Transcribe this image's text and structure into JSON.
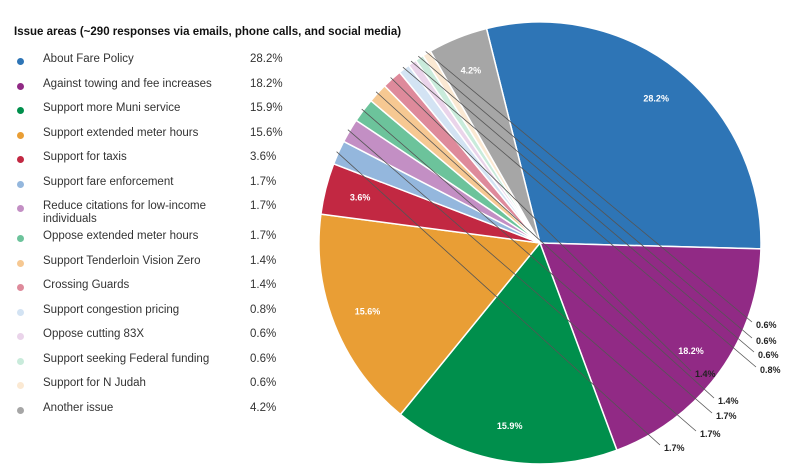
{
  "chart_data": {
    "type": "pie",
    "title": "Issue areas (~290 responses via emails, phone calls, and social media)",
    "slices": [
      {
        "label": "About Fare Policy",
        "value": 28.2,
        "display": "28.2%",
        "color": "#2e75b6"
      },
      {
        "label": "Against towing and fee increases",
        "value": 18.2,
        "display": "18.2%",
        "color": "#912a85"
      },
      {
        "label": "Support more Muni service",
        "value": 15.9,
        "display": "15.9%",
        "color": "#008f4c"
      },
      {
        "label": "Support extended meter hours",
        "value": 15.6,
        "display": "15.6%",
        "color": "#e99e35"
      },
      {
        "label": "Support for taxis",
        "value": 3.6,
        "display": "3.6%",
        "color": "#c22842"
      },
      {
        "label": "Support fare enforcement",
        "value": 1.7,
        "display": "1.7%",
        "color": "#94b7dd"
      },
      {
        "label": "Reduce citations for low-income individuals",
        "value": 1.7,
        "display": "1.7%",
        "color": "#c38fc4"
      },
      {
        "label": "Oppose extended meter hours",
        "value": 1.7,
        "display": "1.7%",
        "color": "#6cc39b"
      },
      {
        "label": "Support Tenderloin Vision Zero",
        "value": 1.4,
        "display": "1.4%",
        "color": "#f6c892"
      },
      {
        "label": "Crossing Guards",
        "value": 1.4,
        "display": "1.4%",
        "color": "#de8a9b"
      },
      {
        "label": "Support congestion pricing",
        "value": 0.8,
        "display": "0.8%",
        "color": "#d3e3f3"
      },
      {
        "label": "Oppose cutting 83X",
        "value": 0.6,
        "display": "0.6%",
        "color": "#ead4ea"
      },
      {
        "label": "Support seeking Federal funding",
        "value": 0.6,
        "display": "0.6%",
        "color": "#c9ebdb"
      },
      {
        "label": "Support for N Judah",
        "value": 0.6,
        "display": "0.6%",
        "color": "#fbe9d3"
      },
      {
        "label": "Another issue",
        "value": 4.2,
        "display": "4.2%",
        "color": "#a6a6a6"
      }
    ],
    "label_color_inside": "#ffffff",
    "label_color_outside": "#222222",
    "legend_position": "left"
  }
}
